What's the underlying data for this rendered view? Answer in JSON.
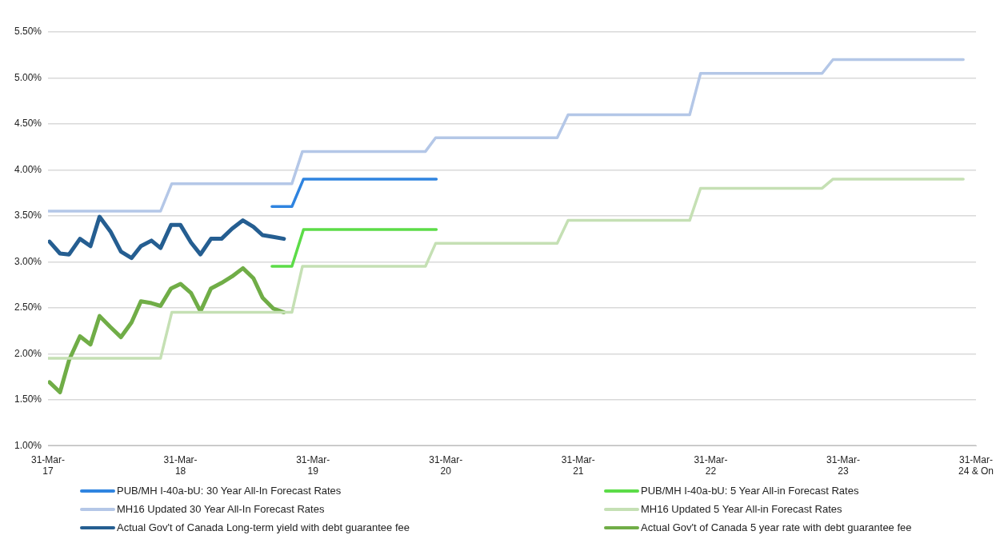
{
  "chart_data": {
    "type": "line",
    "legend": "bottom",
    "grid": "y",
    "marker": "none",
    "line_style": "solid",
    "xlim": [
      "2017-03-31",
      "2024-03-31"
    ],
    "xticks": [
      {
        "value": "2017-03-31",
        "label": "31-Mar-17"
      },
      {
        "value": "2018-03-31",
        "label": "31-Mar-18"
      },
      {
        "value": "2019-03-31",
        "label": "31-Mar-19"
      },
      {
        "value": "2020-03-31",
        "label": "31-Mar-20"
      },
      {
        "value": "2021-03-31",
        "label": "31-Mar-21"
      },
      {
        "value": "2022-03-31",
        "label": "31-Mar-22"
      },
      {
        "value": "2023-03-31",
        "label": "31-Mar-23"
      },
      {
        "value": "2024-03-31",
        "label": "31-Mar-24 & On"
      }
    ],
    "ylim": [
      1,
      5.5
    ],
    "yticks": [
      {
        "value": 1,
        "label": "1.00%"
      },
      {
        "value": 1.5,
        "label": "1.50%"
      },
      {
        "value": 2,
        "label": "2.00%"
      },
      {
        "value": 2.5,
        "label": "2.50%"
      },
      {
        "value": 3,
        "label": "3.00%"
      },
      {
        "value": 3.5,
        "label": "3.50%"
      },
      {
        "value": 4,
        "label": "4.00%"
      },
      {
        "value": 4.5,
        "label": "4.50%"
      },
      {
        "value": 5,
        "label": "5.00%"
      },
      {
        "value": 5.5,
        "label": "5.50%"
      }
    ],
    "series": [
      {
        "name": "PUB/MH I-40a-bU: 30 Year All-In Forecast Rates",
        "color": "#2f84e0",
        "x": [
          "2018-12-08",
          "2019-02-01",
          "2019-03-05",
          "2020-03-05"
        ],
        "values": [
          3.6,
          3.6,
          3.9,
          3.9
        ]
      },
      {
        "name": "PUB/MH I-40a-bU: 5 Year All-in Forecast Rates",
        "color": "#5cdc48",
        "x": [
          "2018-12-08",
          "2019-02-01",
          "2019-03-05",
          "2020-03-05"
        ],
        "values": [
          2.95,
          2.95,
          3.35,
          3.35
        ]
      },
      {
        "name": "MH16 Updated 30 Year All-In Forecast Rates",
        "color": "#b4c7e7",
        "x": [
          "2017-03-31",
          "2018-02-04",
          "2018-03-07",
          "2019-02-01",
          "2019-03-02",
          "2020-02-04",
          "2020-03-03",
          "2021-02-01",
          "2021-03-03",
          "2022-02-01",
          "2022-03-03",
          "2023-02-01",
          "2023-03-03",
          "2024-02-25"
        ],
        "values": [
          3.55,
          3.55,
          3.85,
          3.85,
          4.2,
          4.2,
          4.35,
          4.35,
          4.6,
          4.6,
          5.05,
          5.05,
          5.2,
          5.2
        ]
      },
      {
        "name": "MH16 Updated 5 Year All-in Forecast Rates",
        "color": "#c5e0b4",
        "x": [
          "2017-03-31",
          "2018-02-04",
          "2018-03-07",
          "2019-02-01",
          "2019-03-02",
          "2020-02-04",
          "2020-03-03",
          "2021-02-01",
          "2021-03-03",
          "2022-02-01",
          "2022-03-03",
          "2023-02-01",
          "2023-03-03",
          "2024-02-25"
        ],
        "values": [
          1.95,
          1.95,
          2.45,
          2.45,
          2.95,
          2.95,
          3.2,
          3.2,
          3.45,
          3.45,
          3.8,
          3.8,
          3.9,
          3.9
        ]
      },
      {
        "name": "Actual Gov't of Canada Long-term yield with debt guarantee fee",
        "color": "#255e91",
        "x": [
          "2017-04-04",
          "2017-05-03",
          "2017-05-28",
          "2017-06-27",
          "2017-07-26",
          "2017-08-20",
          "2017-09-19",
          "2017-10-18",
          "2017-11-16",
          "2017-12-12",
          "2018-01-10",
          "2018-02-04",
          "2018-03-05",
          "2018-03-31",
          "2018-04-29",
          "2018-05-25",
          "2018-06-23",
          "2018-07-22",
          "2018-08-20",
          "2018-09-19",
          "2018-10-18",
          "2018-11-12",
          "2018-12-12",
          "2019-01-10"
        ],
        "values": [
          3.22,
          3.09,
          3.08,
          3.25,
          3.17,
          3.49,
          3.33,
          3.11,
          3.04,
          3.17,
          3.23,
          3.15,
          3.4,
          3.4,
          3.21,
          3.08,
          3.25,
          3.25,
          3.36,
          3.45,
          3.38,
          3.29,
          3.27,
          3.25
        ]
      },
      {
        "name": "Actual Gov't of Canada 5 year rate with debt guarantee fee",
        "color": "#70ad47",
        "x": [
          "2017-04-04",
          "2017-05-03",
          "2017-05-28",
          "2017-06-27",
          "2017-07-26",
          "2017-08-20",
          "2017-09-19",
          "2017-10-18",
          "2017-11-16",
          "2017-12-12",
          "2018-01-10",
          "2018-02-04",
          "2018-03-05",
          "2018-03-31",
          "2018-04-29",
          "2018-05-25",
          "2018-06-23",
          "2018-07-22",
          "2018-08-20",
          "2018-09-19",
          "2018-10-18",
          "2018-11-12",
          "2018-12-12",
          "2019-01-10"
        ],
        "values": [
          1.69,
          1.58,
          1.93,
          2.19,
          2.1,
          2.41,
          2.29,
          2.18,
          2.34,
          2.57,
          2.55,
          2.52,
          2.71,
          2.76,
          2.66,
          2.46,
          2.71,
          2.77,
          2.84,
          2.93,
          2.82,
          2.61,
          2.49,
          2.45
        ]
      }
    ]
  }
}
